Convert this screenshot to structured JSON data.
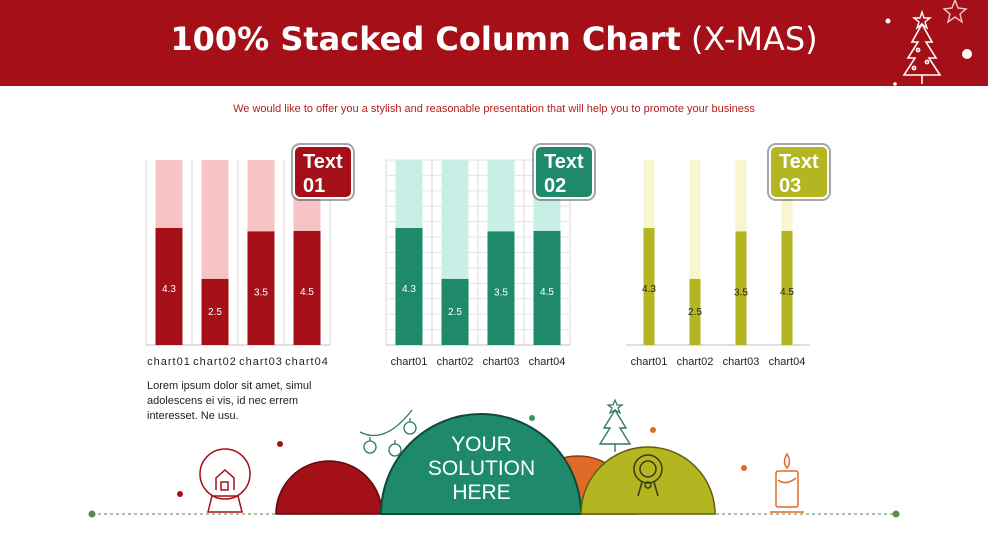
{
  "header": {
    "title_bold": "100% Stacked Column Chart",
    "title_light": "(X-MAS)",
    "subtitle": "We would like to offer you a stylish and reasonable presentation that will help you to promote your business"
  },
  "colors": {
    "header_bg": "#a50f17",
    "red_dark": "#a50f17",
    "red_light": "#f8c3c4",
    "green_dark": "#1e8a6b",
    "green_light": "#c8efe6",
    "olive_dark": "#b3b521",
    "olive_light": "#f7f6cc",
    "orange": "#e06a28"
  },
  "chart_data": [
    {
      "type": "bar",
      "stacking": "100%",
      "categories": [
        "chart01",
        "chart02",
        "chart03",
        "chart04"
      ],
      "series": [
        {
          "values": [
            4.3,
            2.5,
            3.5,
            4.5
          ]
        },
        {
          "values": [
            2.5,
            4.5,
            2.2,
            2.8
          ]
        }
      ],
      "data_labels": [
        "4.3",
        "2.5",
        "3.5",
        "4.5"
      ],
      "badge": "Text 01",
      "badge_lines": [
        "Text",
        "01"
      ],
      "grid": "vertical",
      "accent": "#a50f17",
      "light": "#f8c3c4",
      "label_color": "#ffffff"
    },
    {
      "type": "bar",
      "stacking": "100%",
      "categories": [
        "chart01",
        "chart02",
        "chart03",
        "chart04"
      ],
      "series": [
        {
          "values": [
            4.3,
            2.5,
            3.5,
            4.5
          ]
        },
        {
          "values": [
            2.5,
            4.5,
            2.2,
            2.8
          ]
        }
      ],
      "data_labels": [
        "4.3",
        "2.5",
        "3.5",
        "4.5"
      ],
      "badge": "Text 02",
      "badge_lines": [
        "Text",
        "02"
      ],
      "grid": "both",
      "accent": "#1e8a6b",
      "light": "#c8efe6",
      "label_color": "#ffffff"
    },
    {
      "type": "bar",
      "stacking": "100%",
      "categories": [
        "chart01",
        "chart02",
        "chart03",
        "chart04"
      ],
      "series": [
        {
          "values": [
            4.3,
            2.5,
            3.5,
            4.5
          ]
        },
        {
          "values": [
            2.5,
            4.5,
            2.2,
            2.8
          ]
        }
      ],
      "data_labels": [
        "4.3",
        "2.5",
        "3.5",
        "4.5"
      ],
      "badge": "Text 03",
      "badge_lines": [
        "Text",
        "03"
      ],
      "grid": "none",
      "accent": "#b3b521",
      "light": "#f7f6cc",
      "label_color": "#222222"
    }
  ],
  "body_text": "Lorem ipsum dolor sit amet, simul adolescens ei vis, id nec errem interesset. Ne usu.",
  "solution": {
    "lines": [
      "YOUR",
      "SOLUTION",
      "HERE"
    ]
  },
  "icons": [
    "christmas-tree-icon",
    "star-icon",
    "snow-globe-icon",
    "ornament-icon",
    "wreath-icon",
    "candle-icon"
  ]
}
